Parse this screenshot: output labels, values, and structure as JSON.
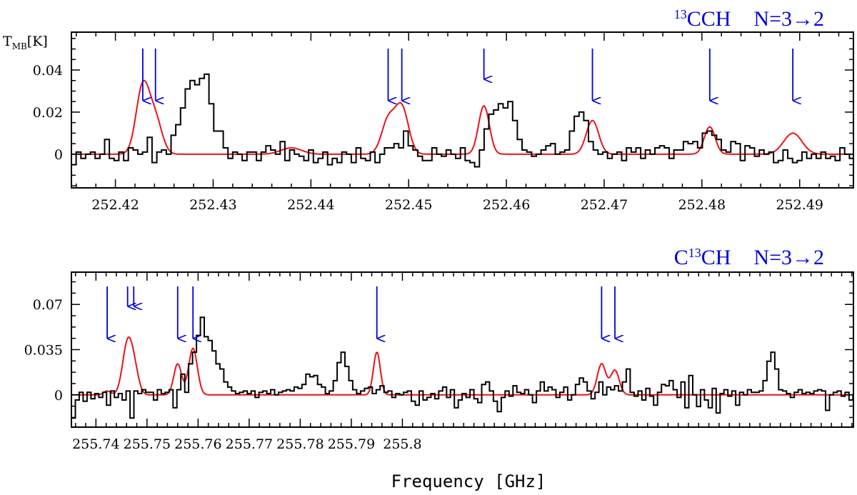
{
  "xlabel": "Frequency [GHz]",
  "colors": {
    "observed": "#000000",
    "model": "#e8141c",
    "arrows": "#0000dd",
    "title": "#0000dd"
  },
  "chart_data": [
    {
      "type": "line",
      "title": {
        "prefix_sup": "13",
        "main": "CCH",
        "transition": "N=3→2"
      },
      "ylabel": {
        "main": "T",
        "sub": "MB",
        "unit": "[K]"
      },
      "xlim": [
        252.4155,
        252.4955
      ],
      "ylim": [
        -0.016,
        0.058
      ],
      "xticks": [
        252.42,
        252.43,
        252.44,
        252.45,
        252.46,
        252.47,
        252.48,
        252.49
      ],
      "xtick_labels": [
        "252.42",
        "252.43",
        "252.44",
        "252.45",
        "252.46",
        "252.47",
        "252.48",
        "252.49"
      ],
      "yticks": [
        0,
        0.02,
        0.04
      ],
      "ytick_labels": [
        "0",
        "0.02",
        "0.04"
      ],
      "line_markers_GHz": [
        252.4228,
        252.4241,
        252.4479,
        252.4493,
        252.4577,
        252.4688,
        252.4808,
        252.4893
      ],
      "observed": {
        "name": "Observed spectrum",
        "x_start": 252.4155,
        "x_step": 0.0004853,
        "y": [
          -0.005,
          0.001,
          -0.002,
          0.0,
          0.001,
          -0.002,
          0.0,
          0.007,
          -0.002,
          -0.003,
          0.001,
          -0.003,
          0.003,
          0.002,
          0.0,
          0.001,
          0.008,
          -0.004,
          0.001,
          0.002,
          0.0,
          0.009,
          0.014,
          0.022,
          0.031,
          0.035,
          0.033,
          0.036,
          0.038,
          0.024,
          0.011,
          0.011,
          0.003,
          -0.002,
          0.001,
          0.0,
          -0.003,
          0.001,
          0.001,
          -0.003,
          0.001,
          0.004,
          0.002,
          0.0,
          0.006,
          -0.003,
          0.002,
          0.0,
          -0.001,
          -0.003,
          0.002,
          -0.004,
          -0.002,
          0.001,
          -0.005,
          -0.002,
          -0.004,
          0.001,
          0.0,
          -0.004,
          0.003,
          -0.002,
          -0.003,
          0.001,
          -0.004,
          0.0,
          0.003,
          0.003,
          0.005,
          0.003,
          0.011,
          0.004,
          0.002,
          -0.001,
          -0.003,
          -0.003,
          0.003,
          0.0,
          -0.001,
          0.002,
          0.0,
          -0.002,
          0.003,
          -0.003,
          -0.004,
          -0.006,
          0.002,
          0.012,
          0.019,
          0.021,
          0.024,
          0.022,
          0.025,
          0.016,
          0.007,
          0.002,
          0.001,
          -0.001,
          0.0,
          0.002,
          0.004,
          0.005,
          0.0,
          0.001,
          0.002,
          0.011,
          0.018,
          0.02,
          0.016,
          0.006,
          0.002,
          0.0,
          0.001,
          -0.002,
          0.0,
          0.001,
          -0.003,
          0.003,
          0.001,
          0.003,
          -0.002,
          0.002,
          0.0,
          0.003,
          0.004,
          0.003,
          -0.002,
          0.002,
          0.002,
          0.006,
          0.005,
          0.006,
          0.003,
          0.01,
          0.011,
          0.009,
          0.007,
          0.002,
          0.001,
          0.006,
          0.005,
          -0.003,
          0.004,
          0.003,
          -0.001,
          0.002,
          0.0,
          0.001,
          -0.004,
          -0.003,
          0.002,
          -0.002,
          -0.004,
          -0.003,
          0.001,
          -0.002,
          0.0,
          -0.002,
          0.001,
          -0.002,
          -0.001,
          -0.003,
          0.003,
          0.0,
          -0.002,
          0.003,
          0.0,
          0.003,
          0.006,
          0.002,
          0.007,
          0.013,
          0.013,
          0.01,
          0.006,
          0.006,
          0.0,
          0.002,
          0.001,
          0.004,
          0.008,
          0.004,
          0.005,
          0.011,
          0.009,
          0.013,
          0.01,
          0.015,
          0.017,
          0.011,
          0.016,
          0.014,
          0.01,
          0.012,
          0.016,
          0.008,
          0.003,
          0.01,
          0.017,
          0.008,
          0.005,
          0.0,
          0.003,
          0.002,
          -0.004,
          -0.002
        ]
      },
      "model": {
        "name": "Model fit",
        "components": [
          {
            "center": 252.4228,
            "amp": 0.032,
            "fwhm": 0.0016
          },
          {
            "center": 252.4241,
            "amp": 0.016,
            "fwhm": 0.0016
          },
          {
            "center": 252.438,
            "amp": 0.003,
            "fwhm": 0.0025
          },
          {
            "center": 252.4479,
            "amp": 0.016,
            "fwhm": 0.0016
          },
          {
            "center": 252.4493,
            "amp": 0.022,
            "fwhm": 0.0016
          },
          {
            "center": 252.4577,
            "amp": 0.023,
            "fwhm": 0.0013
          },
          {
            "center": 252.4688,
            "amp": 0.016,
            "fwhm": 0.0015
          },
          {
            "center": 252.4808,
            "amp": 0.013,
            "fwhm": 0.0013
          },
          {
            "center": 252.4893,
            "amp": 0.01,
            "fwhm": 0.0022
          }
        ]
      }
    },
    {
      "type": "line",
      "title": {
        "prefix": "C",
        "sup": "13",
        "main": "CH",
        "transition": "N=3→2"
      },
      "xlim": [
        255.7352,
        255.8883
      ],
      "ylim": [
        -0.025,
        0.095
      ],
      "xticks": [
        255.74,
        255.75,
        255.76,
        255.77,
        255.78,
        255.79,
        255.8
      ],
      "xtick_labels": [
        "255.74",
        "255.75",
        "255.76",
        "255.77",
        "255.78",
        "255.79",
        "255.8"
      ],
      "yticks": [
        0,
        0.035,
        0.07
      ],
      "ytick_labels": [
        "0",
        "0.035",
        "0.07"
      ],
      "line_markers_GHz": [
        255.7422,
        255.7462,
        255.7474,
        255.756,
        255.759,
        255.795,
        255.839,
        255.8416
      ],
      "observed": {
        "name": "Observed spectrum",
        "x_start": 255.7352,
        "x_step": 0.000765,
        "y": [
          -0.018,
          -0.004,
          0.002,
          -0.005,
          0.002,
          -0.003,
          0.001,
          -0.002,
          0.002,
          -0.008,
          0.003,
          -0.002,
          0.001,
          -0.004,
          0.003,
          -0.018,
          0.003,
          0.001,
          0.004,
          0.002,
          0.002,
          -0.004,
          0.004,
          0.001,
          0.002,
          0.004,
          -0.01,
          0.004,
          0.016,
          0.002,
          0.024,
          0.033,
          0.046,
          0.06,
          0.045,
          0.042,
          0.034,
          0.024,
          0.02,
          0.01,
          0.006,
          0.003,
          0.001,
          0.002,
          0.003,
          0.001,
          0.003,
          -0.002,
          0.002,
          0.003,
          0.001,
          0.004,
          0.0,
          0.002,
          0.003,
          0.004,
          0.003,
          0.006,
          0.005,
          0.008,
          0.016,
          0.014,
          0.015,
          0.008,
          0.006,
          0.001,
          0.003,
          0.011,
          0.025,
          0.033,
          0.022,
          0.011,
          0.004,
          0.001,
          0.003,
          0.005,
          0.006,
          0.001,
          0.004,
          0.007,
          0.002,
          0.003,
          -0.002,
          0.001,
          0.0,
          0.002,
          0.003,
          -0.005,
          -0.008,
          0.003,
          -0.004,
          -0.002,
          0.001,
          -0.003,
          0.003,
          0.006,
          -0.002,
          0.004,
          -0.01,
          -0.004,
          0.001,
          -0.002,
          0.004,
          -0.003,
          -0.006,
          0.008,
          0.01,
          0.003,
          -0.005,
          -0.013,
          -0.002,
          0.003,
          -0.001,
          0.007,
          0.002,
          0.001,
          0.004,
          0.0,
          -0.006,
          0.003,
          0.01,
          0.003,
          0.006,
          0.004,
          -0.002,
          0.002,
          0.006,
          -0.004,
          0.0,
          0.008,
          0.013,
          0.01,
          0.003,
          -0.003,
          0.002,
          0.01,
          0.0,
          0.006,
          0.004,
          0.007,
          0.003,
          0.01,
          0.02,
          0.002,
          -0.001,
          0.003,
          -0.004,
          0.005,
          -0.001,
          -0.008,
          0.002,
          0.008,
          0.007,
          0.011,
          0.004,
          -0.002,
          0.01,
          -0.01,
          0.015,
          0.0,
          -0.009,
          0.004,
          -0.004,
          -0.01,
          0.005,
          -0.014,
          0.001,
          0.004,
          -0.001,
          0.003,
          -0.008,
          0.002,
          0.0,
          0.004,
          0.002,
          0.002,
          0.003,
          0.011,
          0.026,
          0.033,
          0.02,
          0.004,
          0.003,
          0.001,
          -0.002,
          0.002,
          0.004,
          0.001,
          0.002,
          0.001,
          0.003,
          0.004,
          0.003,
          -0.012,
          0.0,
          0.002,
          0.003,
          -0.001,
          0.002,
          -0.004,
          -0.001,
          0.004,
          0.02,
          0.033,
          0.023,
          0.016,
          0.022,
          0.016,
          0.013,
          0.007,
          0.002,
          0.001,
          0.009,
          0.014
        ]
      },
      "model": {
        "name": "Model fit",
        "components": [
          {
            "center": 255.7422,
            "amp": 0.003,
            "fwhm": 0.0016
          },
          {
            "center": 255.7462,
            "amp": 0.04,
            "fwhm": 0.0023
          },
          {
            "center": 255.7476,
            "amp": 0.015,
            "fwhm": 0.002
          },
          {
            "center": 255.756,
            "amp": 0.024,
            "fwhm": 0.0018
          },
          {
            "center": 255.759,
            "amp": 0.036,
            "fwhm": 0.002
          },
          {
            "center": 255.795,
            "amp": 0.033,
            "fwhm": 0.0016
          },
          {
            "center": 255.839,
            "amp": 0.024,
            "fwhm": 0.002
          },
          {
            "center": 255.8416,
            "amp": 0.019,
            "fwhm": 0.002
          }
        ]
      }
    }
  ]
}
